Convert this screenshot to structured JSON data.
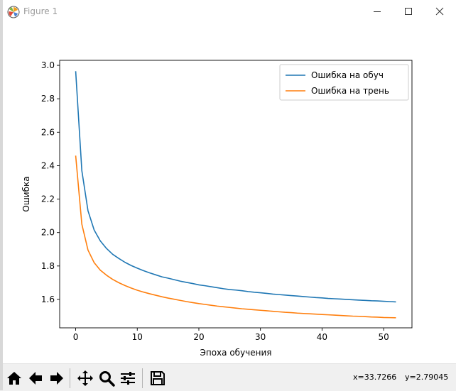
{
  "window": {
    "title": "Figure 1",
    "accent_border": "#d8d8d8"
  },
  "titlebar_buttons": [
    {
      "name": "minimize-icon"
    },
    {
      "name": "maximize-icon"
    },
    {
      "name": "close-icon"
    }
  ],
  "chart_data": {
    "type": "line",
    "title": "",
    "xlabel": "Эпоха обучения",
    "ylabel": "Ошибка",
    "xlim": [
      -2.6,
      54.6
    ],
    "ylim": [
      1.43,
      3.03
    ],
    "xticks": [
      0,
      10,
      20,
      30,
      40,
      50
    ],
    "yticks": [
      1.6,
      1.8,
      2.0,
      2.2,
      2.4,
      2.6,
      2.8,
      3.0
    ],
    "ytick_labels": [
      "1.6",
      "1.8",
      "2.0",
      "2.2",
      "2.4",
      "2.6",
      "2.8",
      "3.0"
    ],
    "grid": false,
    "legend_position": "top-right",
    "x": [
      0,
      1,
      2,
      3,
      4,
      5,
      6,
      7,
      8,
      9,
      10,
      11,
      12,
      13,
      14,
      15,
      16,
      17,
      18,
      19,
      20,
      21,
      22,
      23,
      24,
      25,
      26,
      27,
      28,
      29,
      30,
      31,
      32,
      33,
      34,
      35,
      36,
      37,
      38,
      39,
      40,
      41,
      42,
      43,
      44,
      45,
      46,
      47,
      48,
      49,
      50,
      51,
      52
    ],
    "series": [
      {
        "name": "Ошибка на обуч",
        "color": "#1f77b4",
        "values": [
          2.965,
          2.37,
          2.13,
          2.015,
          1.95,
          1.905,
          1.87,
          1.845,
          1.822,
          1.803,
          1.787,
          1.772,
          1.759,
          1.747,
          1.735,
          1.727,
          1.718,
          1.709,
          1.702,
          1.695,
          1.687,
          1.682,
          1.676,
          1.67,
          1.664,
          1.659,
          1.656,
          1.652,
          1.647,
          1.643,
          1.64,
          1.636,
          1.632,
          1.629,
          1.626,
          1.623,
          1.62,
          1.617,
          1.614,
          1.611,
          1.609,
          1.606,
          1.604,
          1.602,
          1.6,
          1.598,
          1.596,
          1.594,
          1.592,
          1.591,
          1.589,
          1.587,
          1.585
        ]
      },
      {
        "name": "Ошибка на трень",
        "color": "#ff7f0e",
        "values": [
          2.46,
          2.05,
          1.895,
          1.82,
          1.775,
          1.745,
          1.72,
          1.7,
          1.683,
          1.668,
          1.655,
          1.644,
          1.634,
          1.625,
          1.616,
          1.608,
          1.601,
          1.594,
          1.587,
          1.581,
          1.575,
          1.57,
          1.565,
          1.56,
          1.556,
          1.552,
          1.548,
          1.544,
          1.541,
          1.538,
          1.535,
          1.532,
          1.529,
          1.526,
          1.523,
          1.521,
          1.518,
          1.516,
          1.514,
          1.512,
          1.51,
          1.508,
          1.506,
          1.504,
          1.502,
          1.5,
          1.499,
          1.497,
          1.495,
          1.494,
          1.492,
          1.491,
          1.49
        ]
      }
    ]
  },
  "toolbar": {
    "buttons": [
      {
        "name": "home-icon"
      },
      {
        "name": "back-arrow-icon"
      },
      {
        "name": "forward-arrow-icon"
      },
      {
        "name": "pan-icon"
      },
      {
        "name": "zoom-icon"
      },
      {
        "name": "configure-subplots-icon"
      },
      {
        "name": "save-icon"
      }
    ],
    "coords_x": "x=33.7266",
    "coords_y": "y=2.79045"
  }
}
